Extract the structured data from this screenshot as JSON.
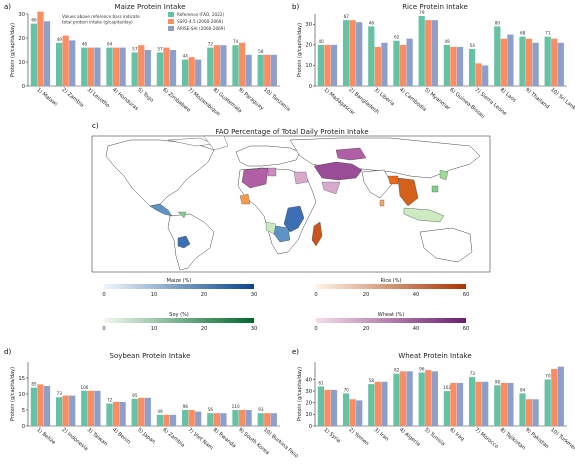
{
  "colors": {
    "reference": "#66c2a5",
    "ssp": "#fc8d62",
    "arise": "#8da0cb",
    "land": "#ffffff",
    "border": "#444444"
  },
  "chart_data": [
    {
      "panel": "a)",
      "type": "bar",
      "title": "Maize Protein Intake",
      "ylabel": "Protein (g/capita/day)",
      "ylim": [
        0,
        30
      ],
      "yticks": [
        0,
        10,
        20,
        30
      ],
      "categories": [
        "1) Malawi",
        "2) Zambia",
        "3) Lesotho",
        "4) Honduras",
        "5) Togo",
        "6) Zimbabwe",
        "7) Mozambique",
        "8) Guatemala",
        "9) Paraguay",
        "10) Tanzania"
      ],
      "annotations": [
        "66",
        "49",
        "48",
        "64",
        "57",
        "57",
        "44",
        "72",
        "74",
        "58"
      ],
      "series": [
        {
          "name": "Reference (FAO, 2022)",
          "values": [
            26,
            18,
            16,
            16,
            14,
            14,
            11,
            16,
            17,
            13
          ]
        },
        {
          "name": "SSP2-4.5 (2060-2069)",
          "values": [
            31,
            21,
            16,
            16,
            17,
            16,
            12,
            17,
            18,
            13
          ]
        },
        {
          "name": "ARISE-SAI (2060-2069)",
          "values": [
            27,
            19,
            16,
            16,
            15,
            15,
            11,
            17,
            13,
            13
          ]
        }
      ],
      "note": "Values above reference bars indicate total protein intake (g/capita/day)"
    },
    {
      "panel": "b)",
      "type": "bar",
      "title": "Rice Protein Intake",
      "ylabel": "Protein (g/capita/day)",
      "ylim": [
        0,
        35
      ],
      "yticks": [
        0,
        10,
        20,
        30
      ],
      "categories": [
        "1) Madagascar",
        "2) Bangladesh",
        "3) Liberia",
        "4) Cambodia",
        "5) Myanmar",
        "6) Guinea-Bissau",
        "7) Sierra Leone",
        "8) Laos",
        "9) Thailand",
        "10) Sri Lanka"
      ],
      "annotations": [
        "40",
        "67",
        "46",
        "62",
        "79",
        "49",
        "54",
        "80",
        "68",
        "71"
      ],
      "series": [
        {
          "name": "Reference (FAO, 2022)",
          "values": [
            20,
            32,
            29,
            22,
            34,
            20,
            18,
            29,
            24,
            24
          ]
        },
        {
          "name": "SSP2-4.5 (2060-2069)",
          "values": [
            20,
            32,
            19,
            20,
            32,
            19,
            11,
            23,
            23,
            23
          ]
        },
        {
          "name": "ARISE-SAI (2060-2069)",
          "values": [
            20,
            31,
            21,
            23,
            32,
            19,
            10,
            25,
            21,
            21
          ]
        }
      ]
    },
    {
      "panel": "d)",
      "type": "bar",
      "title": "Soybean Protein Intake",
      "ylabel": "Protein (g/capita/day)",
      "ylim": [
        0,
        20
      ],
      "yticks": [
        0,
        5,
        10,
        15
      ],
      "categories": [
        "1) Belize",
        "2) Indonesia",
        "3) Taiwan",
        "4) Benin",
        "5) Japan",
        "6) Zambia",
        "7) Viet Nam",
        "8) Rwanda",
        "9) South Korea",
        "10) Burkina Faso"
      ],
      "annotations": [
        "85",
        "73",
        "106",
        "72",
        "95",
        "49",
        "98",
        "56",
        "110",
        "93"
      ],
      "series": [
        {
          "name": "Reference (FAO, 2022)",
          "values": [
            12,
            9,
            11,
            7,
            8.5,
            3.5,
            5,
            4,
            5,
            4
          ]
        },
        {
          "name": "SSP2-4.5 (2060-2069)",
          "values": [
            13,
            9.5,
            11,
            7.5,
            8.8,
            3.5,
            5,
            4,
            5,
            4
          ]
        },
        {
          "name": "ARISE-SAI (2060-2069)",
          "values": [
            12.5,
            9.5,
            11,
            7.5,
            8.8,
            3.5,
            4.5,
            4,
            5,
            4
          ]
        }
      ]
    },
    {
      "panel": "e)",
      "type": "bar",
      "title": "Wheat Protein Intake",
      "ylabel": "Protein (g/capita/day)",
      "ylim": [
        0,
        55
      ],
      "yticks": [
        0,
        10,
        20,
        30,
        40
      ],
      "categories": [
        "1) Syria",
        "2) Yemen",
        "3) Iran",
        "4) Algeria",
        "5) Tunisia",
        "6) Iraq",
        "7) Morocco",
        "8) Tajikistan",
        "9) Pakistan",
        "10) Turkmenistan"
      ],
      "annotations": [
        "61",
        "70",
        "58",
        "82",
        "96",
        "102",
        "73",
        "98",
        "84",
        "70"
      ],
      "series": [
        {
          "name": "Reference (FAO, 2022)",
          "values": [
            34,
            28,
            36,
            45,
            46,
            30,
            42,
            35,
            28,
            40
          ]
        },
        {
          "name": "SSP2-4.5 (2060-2069)",
          "values": [
            31,
            23,
            38,
            47,
            48,
            37,
            38,
            37,
            23,
            49
          ]
        },
        {
          "name": "ARISE-SAI (2060-2069)",
          "values": [
            31,
            22,
            38,
            47,
            47,
            37,
            38,
            37,
            23,
            51
          ]
        }
      ]
    }
  ],
  "map": {
    "panel": "c)",
    "title": "FAO Percentage of Total Daily Protein Intake",
    "colorbars": [
      {
        "label": "Maize (%)",
        "ticks": [
          "0",
          "10",
          "20",
          "30"
        ],
        "from": "#f0f5fb",
        "to": "#08458f"
      },
      {
        "label": "Rice (%)",
        "ticks": [
          "0",
          "20",
          "40",
          "60"
        ],
        "from": "#fff3e6",
        "to": "#a63603"
      },
      {
        "label": "Soy (%)",
        "ticks": [
          "0",
          "10",
          "20",
          "30"
        ],
        "from": "#f2f9ef",
        "to": "#00682c"
      },
      {
        "label": "Wheat (%)",
        "ticks": [
          "0",
          "20",
          "40",
          "60"
        ],
        "from": "#f6dde8",
        "to": "#6a1f6e"
      }
    ]
  }
}
